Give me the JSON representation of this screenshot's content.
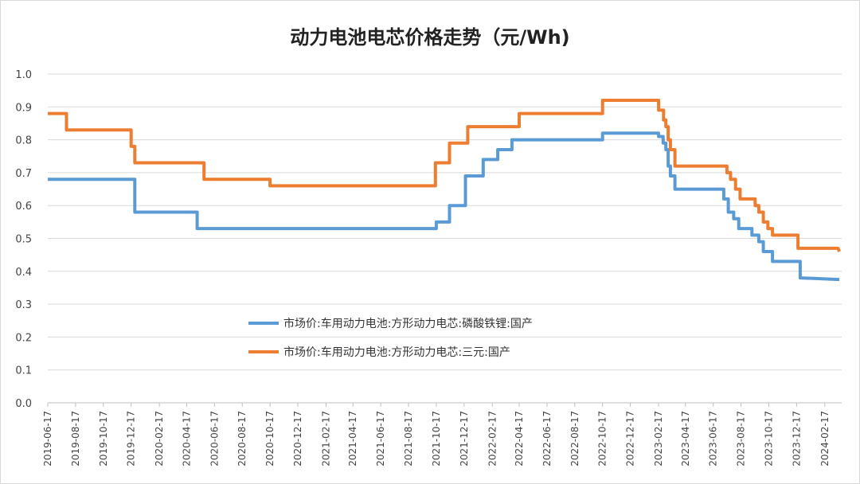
{
  "chart_data": {
    "type": "line",
    "title": "动力电池电芯价格走势（元/Wh)",
    "xlabel": "",
    "ylabel": "",
    "ylim": [
      0.0,
      1.0
    ],
    "yticks": [
      "0.0",
      "0.1",
      "0.2",
      "0.3",
      "0.4",
      "0.5",
      "0.6",
      "0.7",
      "0.8",
      "0.9",
      "1.0"
    ],
    "xlim": [
      "2019-06-17",
      "2024-03-25"
    ],
    "xticks": [
      "2019-06-17",
      "2019-08-17",
      "2019-10-17",
      "2019-12-17",
      "2020-02-17",
      "2020-04-17",
      "2020-06-17",
      "2020-08-17",
      "2020-10-17",
      "2020-12-17",
      "2021-02-17",
      "2021-04-17",
      "2021-06-17",
      "2021-08-17",
      "2021-10-17",
      "2021-12-17",
      "2022-02-17",
      "2022-04-17",
      "2022-06-17",
      "2022-08-17",
      "2022-10-17",
      "2022-12-17",
      "2023-02-17",
      "2023-04-17",
      "2023-06-17",
      "2023-08-17",
      "2023-10-17",
      "2023-12-17",
      "2024-02-17"
    ],
    "grid": true,
    "legend_position": "center",
    "series": [
      {
        "name": "市场价:车用动力电池:方形动力电芯:磷酸铁锂:国产",
        "color": "#5b9bd5",
        "points": [
          [
            "2019-06-17",
            0.68
          ],
          [
            "2019-12-25",
            0.68
          ],
          [
            "2019-12-25",
            0.58
          ],
          [
            "2020-05-10",
            0.58
          ],
          [
            "2020-05-10",
            0.53
          ],
          [
            "2021-10-17",
            0.53
          ],
          [
            "2021-10-17",
            0.55
          ],
          [
            "2021-11-15",
            0.55
          ],
          [
            "2021-11-15",
            0.6
          ],
          [
            "2021-12-20",
            0.6
          ],
          [
            "2021-12-20",
            0.69
          ],
          [
            "2022-01-28",
            0.69
          ],
          [
            "2022-01-28",
            0.74
          ],
          [
            "2022-03-01",
            0.74
          ],
          [
            "2022-03-01",
            0.77
          ],
          [
            "2022-04-01",
            0.77
          ],
          [
            "2022-04-01",
            0.8
          ],
          [
            "2022-10-17",
            0.8
          ],
          [
            "2022-10-17",
            0.82
          ],
          [
            "2023-02-17",
            0.82
          ],
          [
            "2023-02-17",
            0.81
          ],
          [
            "2023-02-27",
            0.81
          ],
          [
            "2023-02-27",
            0.79
          ],
          [
            "2023-03-05",
            0.79
          ],
          [
            "2023-03-05",
            0.77
          ],
          [
            "2023-03-10",
            0.77
          ],
          [
            "2023-03-10",
            0.72
          ],
          [
            "2023-03-15",
            0.72
          ],
          [
            "2023-03-15",
            0.69
          ],
          [
            "2023-03-25",
            0.69
          ],
          [
            "2023-03-25",
            0.65
          ],
          [
            "2023-07-10",
            0.65
          ],
          [
            "2023-07-10",
            0.62
          ],
          [
            "2023-07-20",
            0.62
          ],
          [
            "2023-07-20",
            0.58
          ],
          [
            "2023-08-01",
            0.58
          ],
          [
            "2023-08-01",
            0.56
          ],
          [
            "2023-08-12",
            0.56
          ],
          [
            "2023-08-12",
            0.53
          ],
          [
            "2023-09-10",
            0.53
          ],
          [
            "2023-09-10",
            0.51
          ],
          [
            "2023-09-25",
            0.51
          ],
          [
            "2023-09-25",
            0.49
          ],
          [
            "2023-10-05",
            0.49
          ],
          [
            "2023-10-05",
            0.46
          ],
          [
            "2023-10-25",
            0.46
          ],
          [
            "2023-10-25",
            0.43
          ],
          [
            "2023-12-25",
            0.43
          ],
          [
            "2023-12-25",
            0.38
          ],
          [
            "2024-03-20",
            0.375
          ]
        ]
      },
      {
        "name": "市场价:车用动力电池:方形动力电芯:三元:国产",
        "color": "#ed7d31",
        "points": [
          [
            "2019-06-17",
            0.88
          ],
          [
            "2019-07-28",
            0.88
          ],
          [
            "2019-07-28",
            0.83
          ],
          [
            "2019-12-17",
            0.83
          ],
          [
            "2019-12-17",
            0.78
          ],
          [
            "2019-12-25",
            0.78
          ],
          [
            "2019-12-25",
            0.73
          ],
          [
            "2020-05-25",
            0.73
          ],
          [
            "2020-05-25",
            0.68
          ],
          [
            "2020-10-17",
            0.68
          ],
          [
            "2020-10-17",
            0.66
          ],
          [
            "2021-10-15",
            0.66
          ],
          [
            "2021-10-15",
            0.73
          ],
          [
            "2021-11-15",
            0.73
          ],
          [
            "2021-11-15",
            0.79
          ],
          [
            "2021-12-25",
            0.79
          ],
          [
            "2021-12-25",
            0.84
          ],
          [
            "2022-04-17",
            0.84
          ],
          [
            "2022-04-17",
            0.88
          ],
          [
            "2022-10-17",
            0.88
          ],
          [
            "2022-10-17",
            0.92
          ],
          [
            "2023-02-17",
            0.92
          ],
          [
            "2023-02-17",
            0.89
          ],
          [
            "2023-02-28",
            0.89
          ],
          [
            "2023-02-28",
            0.86
          ],
          [
            "2023-03-05",
            0.86
          ],
          [
            "2023-03-05",
            0.84
          ],
          [
            "2023-03-10",
            0.84
          ],
          [
            "2023-03-10",
            0.8
          ],
          [
            "2023-03-15",
            0.8
          ],
          [
            "2023-03-15",
            0.77
          ],
          [
            "2023-03-25",
            0.77
          ],
          [
            "2023-03-25",
            0.72
          ],
          [
            "2023-07-17",
            0.72
          ],
          [
            "2023-07-17",
            0.7
          ],
          [
            "2023-07-25",
            0.7
          ],
          [
            "2023-07-25",
            0.68
          ],
          [
            "2023-08-05",
            0.68
          ],
          [
            "2023-08-05",
            0.65
          ],
          [
            "2023-08-15",
            0.65
          ],
          [
            "2023-08-15",
            0.62
          ],
          [
            "2023-09-17",
            0.62
          ],
          [
            "2023-09-17",
            0.6
          ],
          [
            "2023-09-25",
            0.6
          ],
          [
            "2023-09-25",
            0.58
          ],
          [
            "2023-10-05",
            0.58
          ],
          [
            "2023-10-05",
            0.55
          ],
          [
            "2023-10-15",
            0.55
          ],
          [
            "2023-10-15",
            0.53
          ],
          [
            "2023-10-25",
            0.53
          ],
          [
            "2023-10-25",
            0.51
          ],
          [
            "2023-12-20",
            0.51
          ],
          [
            "2023-12-20",
            0.47
          ],
          [
            "2024-03-17",
            0.47
          ],
          [
            "2024-03-20",
            0.46
          ]
        ]
      }
    ]
  }
}
